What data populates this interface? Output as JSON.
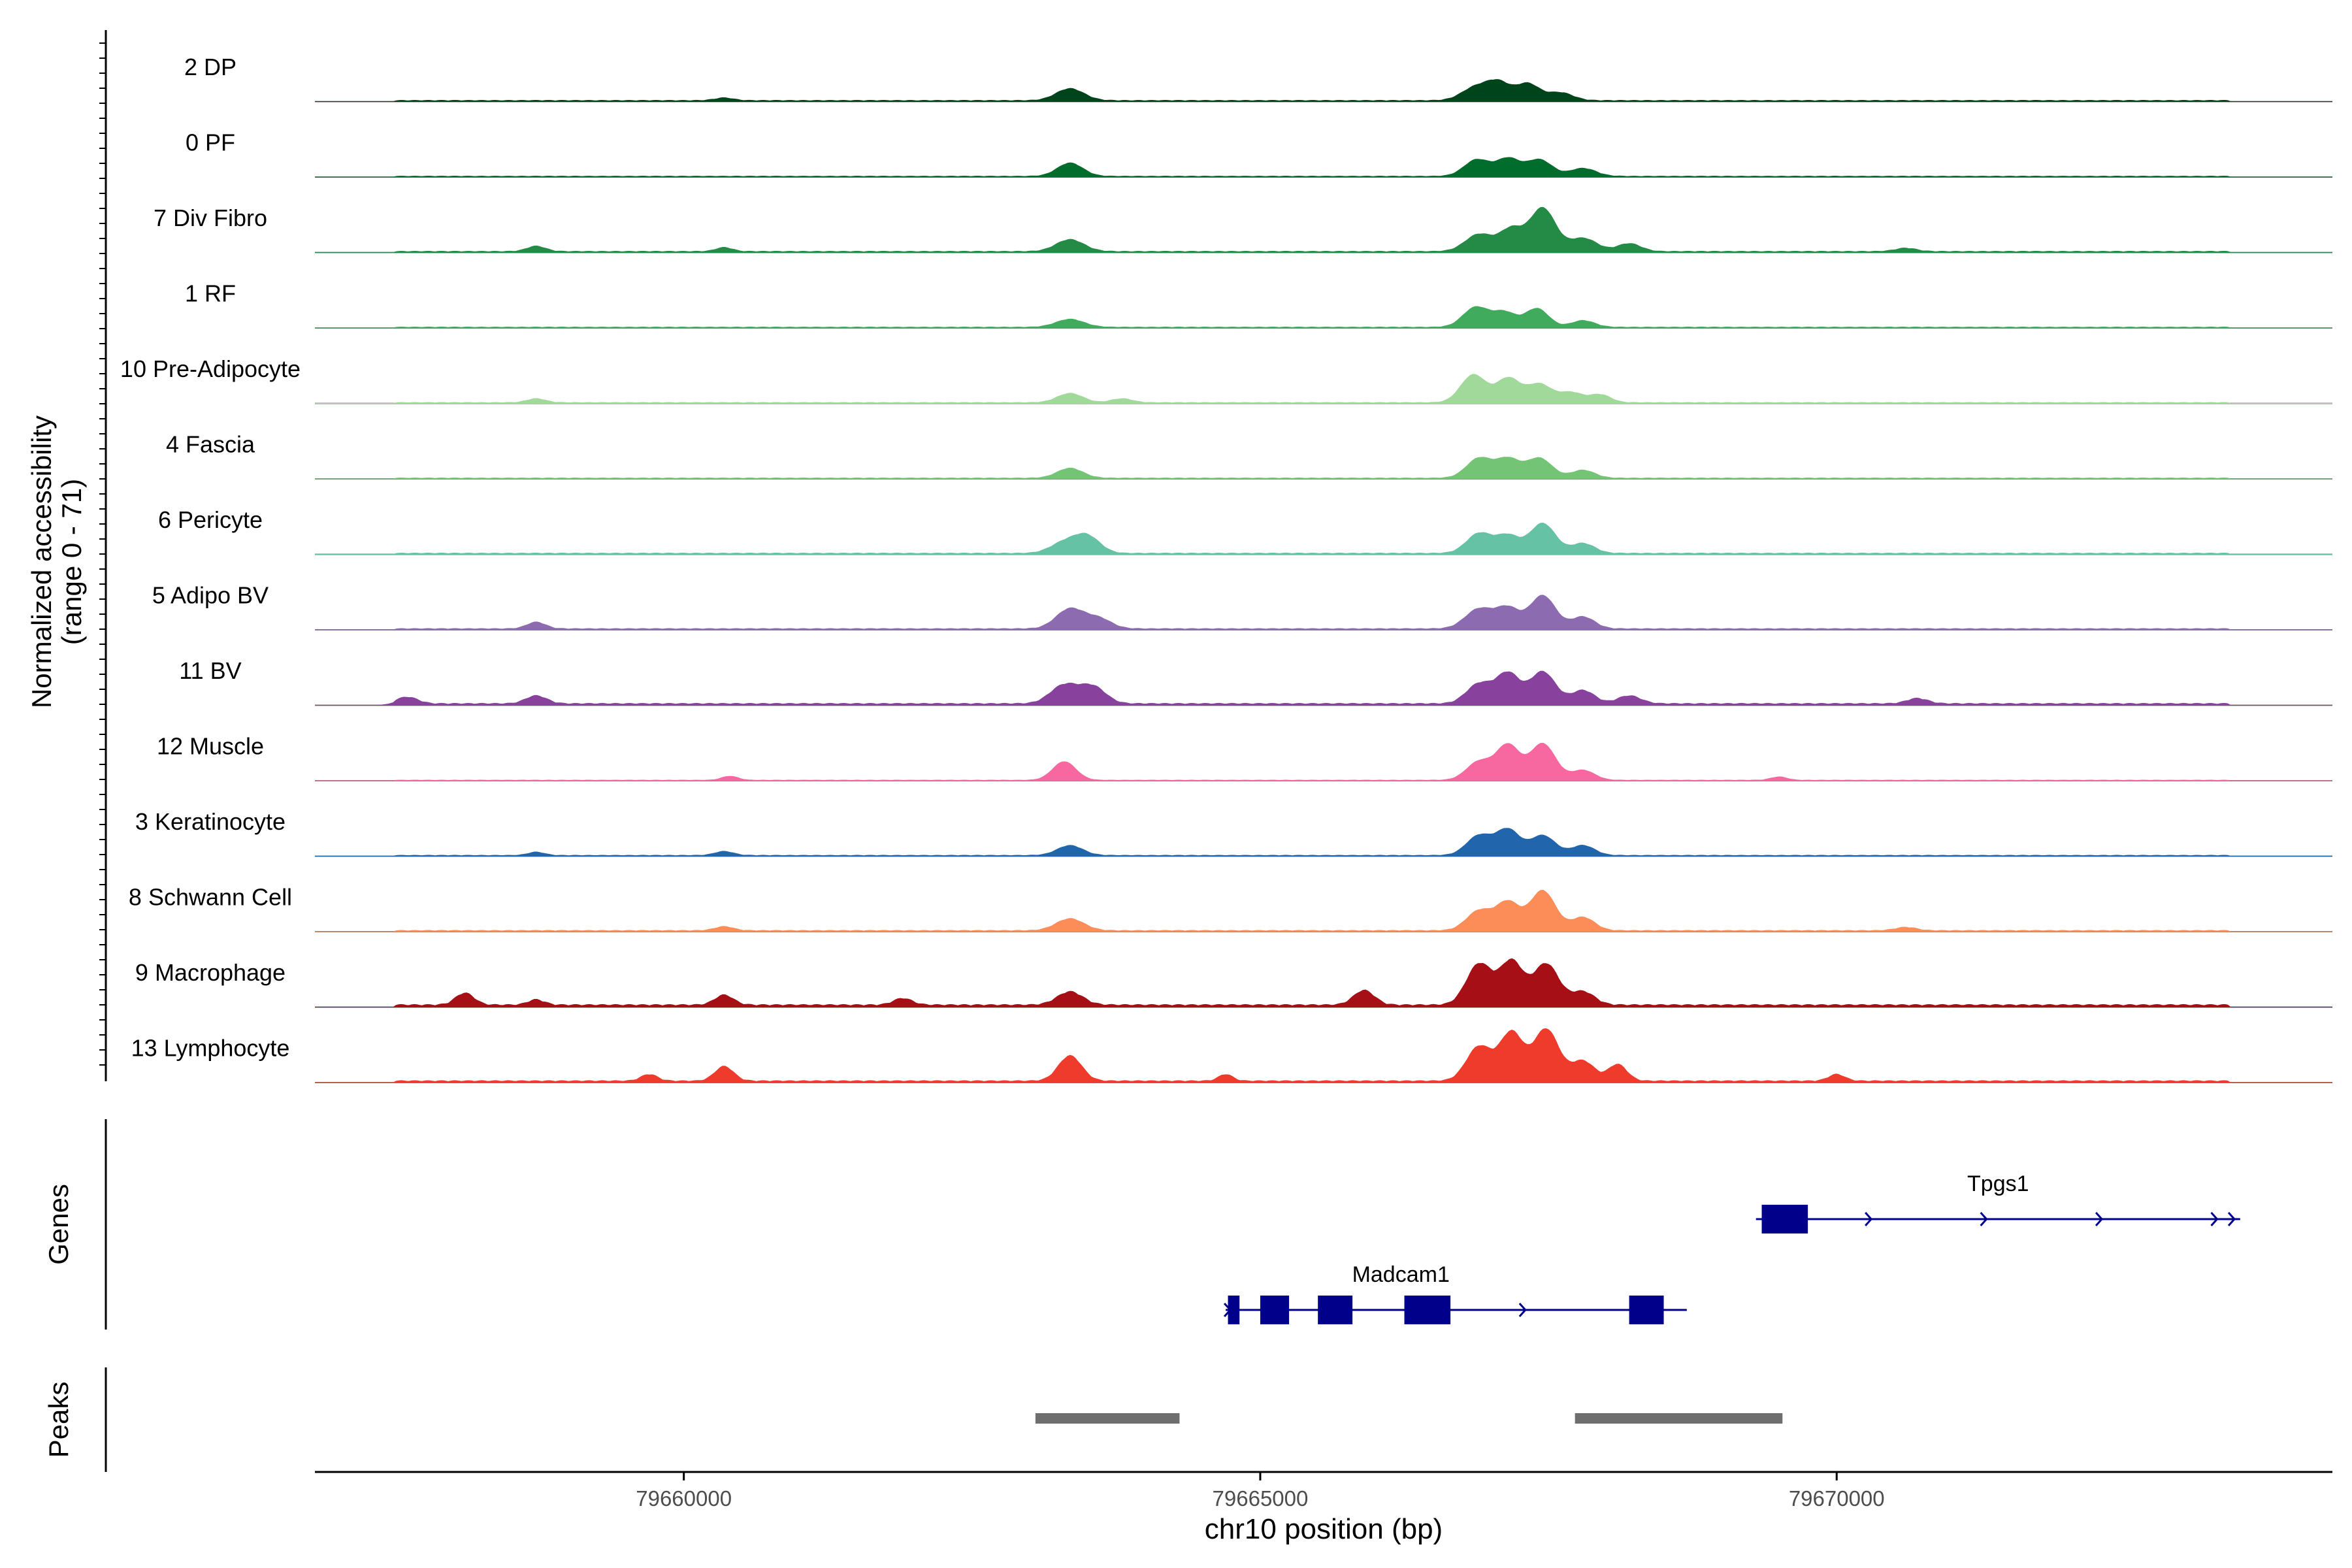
{
  "chart_data": {
    "type": "area",
    "title": "",
    "region": {
      "chrom": "chr10",
      "start": 79656800,
      "end": 79674300
    },
    "xlabel": "chr10 position (bp)",
    "x_ticks": [
      79660000,
      79665000,
      79670000
    ],
    "ylabel": "Normalized accessibility",
    "ylabel_range": "(range 0 - 71)",
    "ylim": [
      0,
      71
    ],
    "series": [
      {
        "name": "2 DP",
        "color": "#00441b",
        "peaks": [
          [
            79663350,
            0.18,
            120
          ],
          [
            79666870,
            0.2,
            120
          ],
          [
            79667070,
            0.25,
            100
          ],
          [
            79667320,
            0.25,
            100
          ],
          [
            79667600,
            0.12,
            110
          ],
          [
            79660350,
            0.04,
            80
          ]
        ],
        "baseline": 0.02
      },
      {
        "name": "0 PF",
        "color": "#006d2c",
        "peaks": [
          [
            79663350,
            0.2,
            110
          ],
          [
            79666880,
            0.25,
            110
          ],
          [
            79667150,
            0.26,
            100
          ],
          [
            79667420,
            0.25,
            110
          ],
          [
            79667800,
            0.12,
            110
          ]
        ],
        "baseline": 0.015
      },
      {
        "name": "7 Div Fibro",
        "color": "#238b45",
        "peaks": [
          [
            79663350,
            0.18,
            120
          ],
          [
            79666900,
            0.26,
            120
          ],
          [
            79667180,
            0.33,
            100
          ],
          [
            79667450,
            0.65,
            110
          ],
          [
            79667800,
            0.2,
            120
          ],
          [
            79668200,
            0.12,
            100
          ],
          [
            79658720,
            0.08,
            80
          ],
          [
            79660350,
            0.06,
            70
          ],
          [
            79670600,
            0.05,
            90
          ]
        ],
        "baseline": 0.02
      },
      {
        "name": "1 RF",
        "color": "#41ab5d",
        "peaks": [
          [
            79663350,
            0.12,
            120
          ],
          [
            79666870,
            0.3,
            110
          ],
          [
            79667120,
            0.22,
            100
          ],
          [
            79667400,
            0.28,
            100
          ],
          [
            79667800,
            0.1,
            100
          ]
        ],
        "baseline": 0.015
      },
      {
        "name": "10 Pre-Adipocyte",
        "color": "#a1d99b",
        "peaks": [
          [
            79663350,
            0.14,
            110
          ],
          [
            79666850,
            0.42,
            110
          ],
          [
            79667150,
            0.36,
            100
          ],
          [
            79667420,
            0.28,
            110
          ],
          [
            79667700,
            0.15,
            100
          ],
          [
            79667950,
            0.12,
            90
          ],
          [
            79658720,
            0.06,
            80
          ],
          [
            79663800,
            0.06,
            90
          ]
        ],
        "baseline": 0.015
      },
      {
        "name": "4 Fascia",
        "color": "#74c476",
        "peaks": [
          [
            79663350,
            0.15,
            110
          ],
          [
            79666900,
            0.3,
            110
          ],
          [
            79667150,
            0.28,
            100
          ],
          [
            79667420,
            0.3,
            110
          ],
          [
            79667800,
            0.12,
            100
          ]
        ],
        "baseline": 0.015
      },
      {
        "name": "6 Pericyte",
        "color": "#66c2a4",
        "peaks": [
          [
            79663300,
            0.16,
            120
          ],
          [
            79663500,
            0.25,
            110
          ],
          [
            79666900,
            0.3,
            110
          ],
          [
            79667150,
            0.26,
            100
          ],
          [
            79667450,
            0.45,
            110
          ],
          [
            79667800,
            0.15,
            100
          ]
        ],
        "baseline": 0.02
      },
      {
        "name": "5 Adipo BV",
        "color": "#8c6bb1",
        "peaks": [
          [
            79663350,
            0.3,
            120
          ],
          [
            79663600,
            0.15,
            110
          ],
          [
            79666900,
            0.3,
            120
          ],
          [
            79667150,
            0.3,
            100
          ],
          [
            79667450,
            0.5,
            110
          ],
          [
            79667800,
            0.18,
            100
          ],
          [
            79658720,
            0.1,
            80
          ]
        ],
        "baseline": 0.02
      },
      {
        "name": "11 BV",
        "color": "#88419d",
        "peaks": [
          [
            79663300,
            0.28,
            120
          ],
          [
            79663550,
            0.25,
            110
          ],
          [
            79666900,
            0.3,
            110
          ],
          [
            79667150,
            0.45,
            100
          ],
          [
            79667450,
            0.48,
            110
          ],
          [
            79667800,
            0.2,
            100
          ],
          [
            79668200,
            0.12,
            100
          ],
          [
            79658720,
            0.12,
            90
          ],
          [
            79657600,
            0.1,
            90
          ],
          [
            79670700,
            0.08,
            90
          ]
        ],
        "baseline": 0.03
      },
      {
        "name": "12 Muscle",
        "color": "#f768a1",
        "peaks": [
          [
            79663300,
            0.28,
            100
          ],
          [
            79666900,
            0.28,
            110
          ],
          [
            79667150,
            0.52,
            100
          ],
          [
            79667450,
            0.55,
            110
          ],
          [
            79667800,
            0.15,
            100
          ],
          [
            79660400,
            0.06,
            70
          ],
          [
            79669500,
            0.05,
            70
          ]
        ],
        "baseline": 0.01
      },
      {
        "name": "3 Keratinocyte",
        "color": "#2166ac",
        "peaks": [
          [
            79663350,
            0.15,
            110
          ],
          [
            79666900,
            0.3,
            110
          ],
          [
            79667150,
            0.38,
            100
          ],
          [
            79667450,
            0.3,
            110
          ],
          [
            79667800,
            0.15,
            100
          ],
          [
            79660350,
            0.06,
            80
          ],
          [
            79658720,
            0.05,
            70
          ]
        ],
        "baseline": 0.015
      },
      {
        "name": "8 Schwann Cell",
        "color": "#fc8d59",
        "peaks": [
          [
            79663350,
            0.18,
            120
          ],
          [
            79666900,
            0.3,
            110
          ],
          [
            79667150,
            0.42,
            100
          ],
          [
            79667450,
            0.6,
            110
          ],
          [
            79667800,
            0.2,
            100
          ],
          [
            79660350,
            0.06,
            80
          ],
          [
            79670600,
            0.05,
            90
          ]
        ],
        "baseline": 0.02
      },
      {
        "name": "9 Macrophage",
        "color": "#a50f15",
        "peaks": [
          [
            79663350,
            0.2,
            110
          ],
          [
            79666900,
            0.62,
            110
          ],
          [
            79667180,
            0.65,
            100
          ],
          [
            79667480,
            0.62,
            110
          ],
          [
            79667800,
            0.2,
            100
          ],
          [
            79658100,
            0.18,
            80
          ],
          [
            79660350,
            0.15,
            80
          ],
          [
            79665900,
            0.22,
            90
          ],
          [
            79661900,
            0.1,
            80
          ],
          [
            79658720,
            0.08,
            70
          ]
        ],
        "baseline": 0.04
      },
      {
        "name": "13 Lymphocyte",
        "color": "#ef3b2c",
        "peaks": [
          [
            79663350,
            0.38,
            100
          ],
          [
            79666900,
            0.52,
            110
          ],
          [
            79667180,
            0.72,
            100
          ],
          [
            79667480,
            0.78,
            110
          ],
          [
            79667800,
            0.3,
            100
          ],
          [
            79668100,
            0.25,
            80
          ],
          [
            79660350,
            0.22,
            80
          ],
          [
            79659700,
            0.1,
            70
          ],
          [
            79664700,
            0.1,
            60
          ],
          [
            79670000,
            0.1,
            70
          ]
        ],
        "baseline": 0.03
      }
    ],
    "genes": [
      {
        "name": "Tpgs1",
        "start": 79669300,
        "end": 79673500,
        "strand": "+",
        "exons": [
          [
            79669350,
            79669750
          ]
        ],
        "arrows": [
          79670300,
          79671300,
          79672300,
          79673300,
          79673450
        ]
      },
      {
        "name": "Madcam1",
        "start": 79664700,
        "end": 79668700,
        "strand": "+",
        "exons": [
          [
            79664720,
            79664820
          ],
          [
            79665000,
            79665250
          ],
          [
            79665500,
            79665800
          ],
          [
            79666250,
            79666650
          ],
          [
            79668200,
            79668500
          ]
        ],
        "arrows": [
          79664740,
          79667300
        ]
      }
    ],
    "peaks_track": [
      [
        79663050,
        79664300
      ],
      [
        79667730,
        79669530
      ]
    ],
    "track_labels": {
      "genes": "Genes",
      "peaks": "Peaks"
    }
  }
}
